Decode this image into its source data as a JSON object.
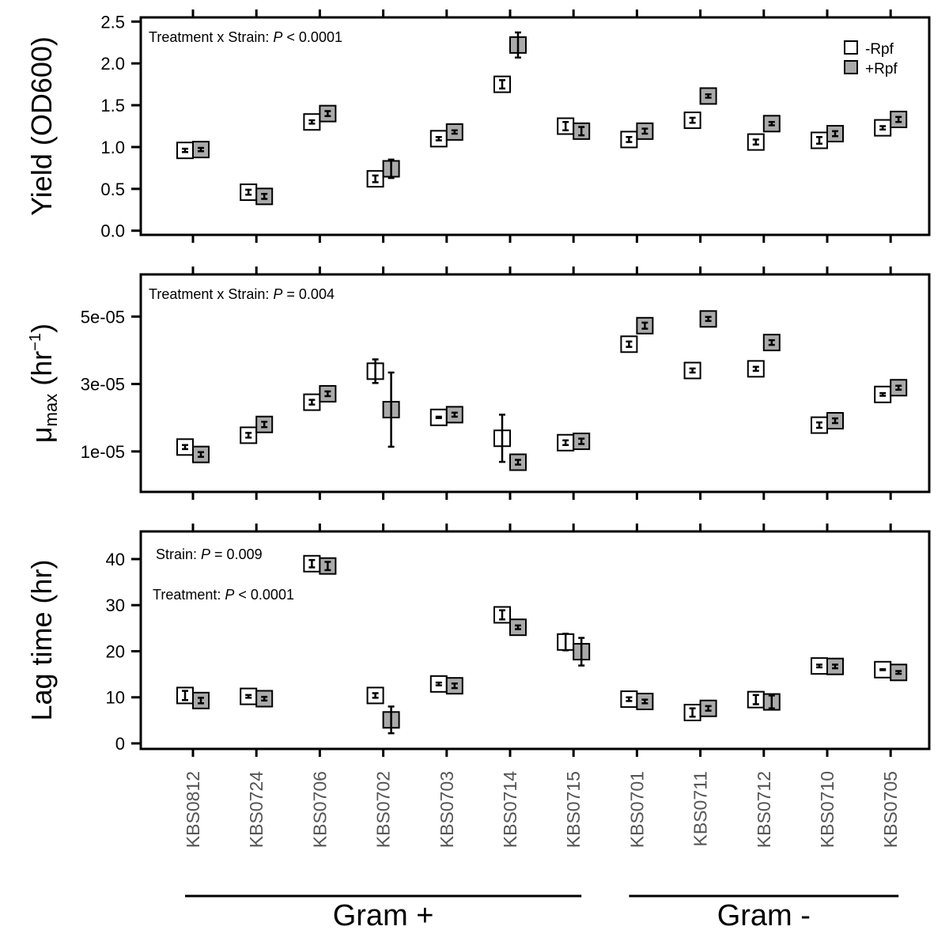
{
  "strains": [
    "KBS0812",
    "KBS0724",
    "KBS0706",
    "KBS0702",
    "KBS0703",
    "KBS0714",
    "KBS0715",
    "KBS0701",
    "KBS0711",
    "KBS0712",
    "KBS0710",
    "KBS0705"
  ],
  "groups": [
    {
      "label": "Gram +",
      "first": 0,
      "last": 6
    },
    {
      "label": "Gram -",
      "first": 7,
      "last": 11
    }
  ],
  "legend": {
    "minus": "-Rpf",
    "plus": "+Rpf"
  },
  "colors": {
    "minus": "#ffffff",
    "plus": "#aaaaaa",
    "line": "#000000",
    "strain_text": "#555555"
  },
  "chart_data": [
    {
      "type": "scatter",
      "panel": "yield",
      "ylabel": "Yield (OD600)",
      "ylim": [
        -0.05,
        2.55
      ],
      "yticks": [
        0.0,
        0.5,
        1.0,
        1.5,
        2.0,
        2.5
      ],
      "ytick_labels": [
        "0.0",
        "0.5",
        "1.0",
        "1.5",
        "2.0",
        "2.5"
      ],
      "annotations": [
        "Treatment x Strain: |P| < 0.0001"
      ],
      "series": [
        {
          "name": "-Rpf",
          "values": [
            0.96,
            0.46,
            1.3,
            0.62,
            1.1,
            1.75,
            1.25,
            1.09,
            1.32,
            1.06,
            1.08,
            1.23
          ],
          "errors": [
            0.02,
            0.03,
            0.02,
            0.04,
            0.02,
            0.05,
            0.05,
            0.03,
            0.03,
            0.03,
            0.04,
            0.02
          ]
        },
        {
          "name": "+Rpf",
          "values": [
            0.97,
            0.41,
            1.4,
            0.74,
            1.18,
            2.22,
            1.19,
            1.19,
            1.61,
            1.28,
            1.16,
            1.33
          ],
          "errors": [
            0.02,
            0.03,
            0.03,
            0.11,
            0.02,
            0.15,
            0.05,
            0.03,
            0.02,
            0.02,
            0.03,
            0.03
          ]
        }
      ]
    },
    {
      "type": "scatter",
      "panel": "umax",
      "ylabel": "μmax (hr−1)",
      "ylim": [
        -2e-06,
        6.25e-05
      ],
      "yticks": [
        1e-05,
        3e-05,
        5e-05
      ],
      "ytick_labels": [
        "1e-05",
        "3e-05",
        "5e-05"
      ],
      "annotations": [
        "Treatment x Strain: |P| = 0.004"
      ],
      "series": [
        {
          "name": "-Rpf",
          "values": [
            1.13e-05,
            1.48e-05,
            2.46e-05,
            3.38e-05,
            2.01e-05,
            1.39e-05,
            1.26e-05,
            4.18e-05,
            3.4e-05,
            3.45e-05,
            1.78e-05,
            2.69e-05
          ],
          "errors": [
            6e-07,
            7e-07,
            7e-07,
            3.5e-06,
            2e-07,
            7e-06,
            7e-07,
            8e-07,
            6e-07,
            6e-07,
            8e-07,
            4e-07
          ]
        },
        {
          "name": "+Rpf",
          "values": [
            9.1e-06,
            1.8e-05,
            2.71e-05,
            2.24e-05,
            2.09e-05,
            6.8e-06,
            1.3e-05,
            4.73e-05,
            4.93e-05,
            4.23e-05,
            1.91e-05,
            2.89e-05
          ],
          "errors": [
            7e-07,
            8e-07,
            7e-07,
            1.1e-05,
            6e-07,
            7e-07,
            8e-07,
            9e-07,
            6e-07,
            7e-07,
            7e-07,
            6e-07
          ]
        }
      ]
    },
    {
      "type": "scatter",
      "panel": "lag",
      "ylabel": "Lag time (hr)",
      "ylim": [
        -1.2,
        46
      ],
      "yticks": [
        0,
        10,
        20,
        30,
        40
      ],
      "ytick_labels": [
        "0",
        "10",
        "20",
        "30",
        "40"
      ],
      "annotations": [
        "Strain: |P| = 0.009",
        "Treatment: |P| < 0.0001"
      ],
      "series": [
        {
          "name": "-Rpf",
          "values": [
            10.4,
            10.2,
            39.0,
            10.4,
            12.9,
            27.9,
            22.0,
            9.6,
            6.7,
            9.5,
            16.8,
            16.0
          ],
          "errors": [
            1.0,
            0.3,
            0.8,
            0.5,
            0.3,
            1.0,
            1.8,
            0.4,
            0.9,
            1.0,
            0.3,
            0.1
          ]
        },
        {
          "name": "+Rpf",
          "values": [
            9.3,
            9.7,
            38.5,
            5.1,
            12.5,
            25.2,
            19.9,
            9.1,
            7.6,
            9.0,
            16.7,
            15.4
          ],
          "errors": [
            0.6,
            0.4,
            0.9,
            2.9,
            0.5,
            0.4,
            3.0,
            0.4,
            0.5,
            1.4,
            0.4,
            0.3
          ]
        }
      ]
    }
  ]
}
